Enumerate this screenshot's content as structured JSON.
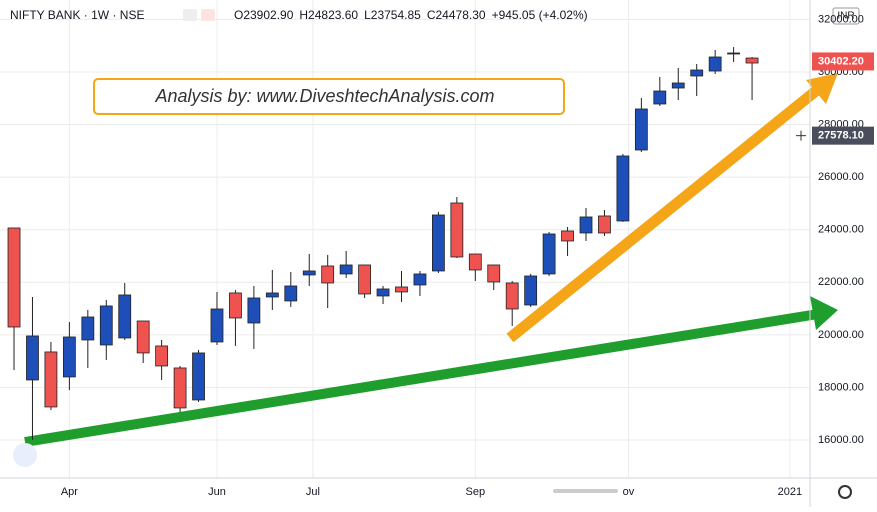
{
  "chart_data": {
    "type": "candlestick",
    "symbol": "NIFTY BANK · 1W · NSE",
    "legend_values": [
      "O23902.90",
      "H24823.60",
      "L23754.85",
      "C24478.30",
      "+945.05 (+4.02%)"
    ],
    "annotation": "Analysis by: www.DiveshtechAnalysis.com",
    "currency": "INR",
    "categories": [
      null,
      null,
      null,
      null,
      null,
      null,
      null,
      null,
      null,
      null,
      null,
      null,
      null,
      null,
      null,
      null,
      null,
      null,
      null,
      null,
      null,
      null,
      null,
      null,
      null,
      null,
      null,
      null,
      null,
      null,
      null,
      null,
      null,
      null,
      null,
      null,
      null,
      null,
      null,
      null,
      null
    ],
    "open": [
      24066,
      18285,
      19350,
      18400,
      19806,
      19616,
      19882,
      20528,
      19578,
      18741,
      17524,
      19730,
      21594,
      20452,
      21442,
      21290,
      22279,
      22621,
      22317,
      22659,
      21480,
      21822,
      21898,
      22431,
      25017,
      23077,
      22659,
      21974,
      21137,
      22317,
      23952,
      23876,
      24523,
      24333,
      27033,
      28783,
      29391,
      29848,
      30038,
      30685,
      30532
    ],
    "high": [
      24066,
      21442,
      19730,
      20490,
      20950,
      21330,
      21974,
      20528,
      19806,
      18817,
      19426,
      21632,
      21708,
      21860,
      22469,
      22393,
      23077,
      23040,
      23191,
      22659,
      21860,
      22431,
      22431,
      24675,
      25245,
      23077,
      22659,
      22050,
      22317,
      23914,
      24104,
      24827,
      24751,
      26881,
      29011,
      29810,
      30152,
      30304,
      30837,
      30951,
      30571
    ],
    "low": [
      18665,
      16000,
      17140,
      17900,
      18740,
      19045,
      19806,
      18930,
      18285,
      17068,
      17448,
      19616,
      19578,
      19464,
      20947,
      21061,
      21860,
      21023,
      22165,
      21404,
      21175,
      21251,
      21480,
      22355,
      22925,
      22050,
      21708,
      20338,
      21061,
      22240,
      23001,
      23572,
      23762,
      24295,
      26957,
      28707,
      28935,
      29087,
      29924,
      30380,
      28935
    ],
    "close": [
      20300,
      19958,
      17258,
      19920,
      20680,
      21100,
      21518,
      19312,
      18817,
      17220,
      19312,
      20985,
      20643,
      21404,
      21594,
      21860,
      22431,
      21974,
      22659,
      21556,
      21746,
      21632,
      22317,
      24561,
      22963,
      22469,
      22012,
      20985,
      22240,
      23838,
      23572,
      24485,
      23876,
      26805,
      28593,
      29277,
      29582,
      30076,
      30571,
      30723,
      30342
    ],
    "up_color": "#1e4fb8",
    "down_color": "#ef5350",
    "xlim": [
      -0.76,
      43.14
    ],
    "xticks": [
      {
        "value": 3,
        "label": "Apr"
      },
      {
        "value": 11,
        "label": "Jun"
      },
      {
        "value": 16.2,
        "label": "Jul"
      },
      {
        "value": 25,
        "label": "Sep"
      },
      {
        "value": 33.3,
        "label": "ov"
      },
      {
        "value": 42.05,
        "label": "2021"
      }
    ],
    "ylim": [
      14555,
      32739
    ],
    "yticks": [
      {
        "value": 16000,
        "label": "16000.00"
      },
      {
        "value": 18000,
        "label": "18000.00"
      },
      {
        "value": 20000,
        "label": "20000.00"
      },
      {
        "value": 22000,
        "label": "22000.00"
      },
      {
        "value": 24000,
        "label": "24000.00"
      },
      {
        "value": 26000,
        "label": "26000.00"
      },
      {
        "value": 28000,
        "label": "28000.00"
      },
      {
        "value": 30000,
        "label": "30000.00"
      },
      {
        "value": 32000,
        "label": "32000.00"
      }
    ],
    "grid": true,
    "last_price": {
      "value": 30402.2,
      "label": "30402.20",
      "color": "#ef5350"
    },
    "crosshair_price": {
      "value": 27578.1,
      "label": "27578.10",
      "color": "#4a4e5c"
    }
  }
}
